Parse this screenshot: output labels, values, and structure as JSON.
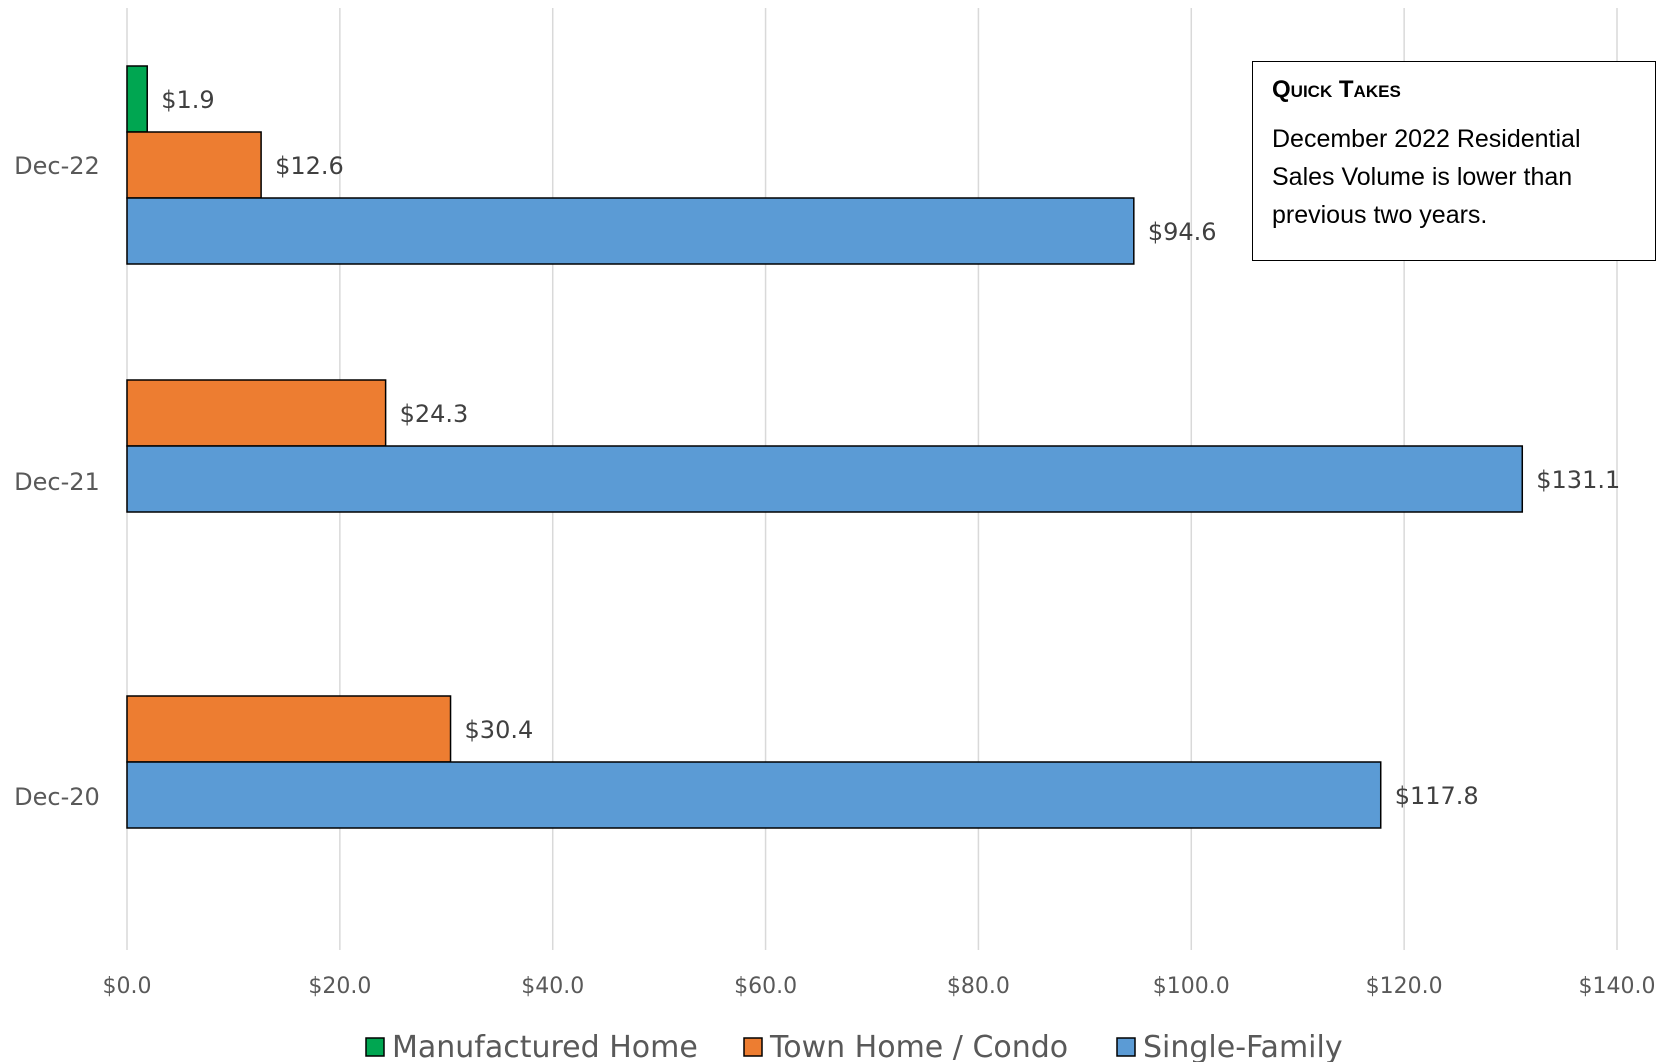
{
  "chart_data": {
    "type": "bar",
    "orientation": "horizontal",
    "categories": [
      "Dec-22",
      "Dec-21",
      "Dec-20"
    ],
    "series": [
      {
        "name": "Manufactured Home",
        "color": "#00A651",
        "values": [
          1.9,
          null,
          null
        ],
        "labels": [
          "$1.9",
          "",
          ""
        ]
      },
      {
        "name": "Town Home / Condo",
        "color": "#ED7D31",
        "values": [
          12.6,
          24.3,
          30.4
        ],
        "labels": [
          "$12.6",
          "$24.3",
          "$30.4"
        ]
      },
      {
        "name": "Single-Family",
        "color": "#5B9BD5",
        "values": [
          94.6,
          131.1,
          117.8
        ],
        "labels": [
          "$94.6",
          "$131.1",
          "$117.8"
        ]
      }
    ],
    "xlim": [
      0,
      140
    ],
    "x_ticks": [
      0,
      20,
      40,
      60,
      80,
      100,
      120,
      140
    ],
    "x_tick_labels": [
      "$0.0",
      "$20.0",
      "$40.0",
      "$60.0",
      "$80.0",
      "$100.0",
      "$120.0",
      "$140.0"
    ],
    "grid": "vertical",
    "legend_position": "bottom",
    "legend": [
      "Manufactured Home",
      "Town Home / Condo",
      "Single-Family"
    ]
  },
  "quick_takes": {
    "title": "Quick Takes",
    "body": "December 2022 Residential Sales Volume is lower than previous two years."
  }
}
